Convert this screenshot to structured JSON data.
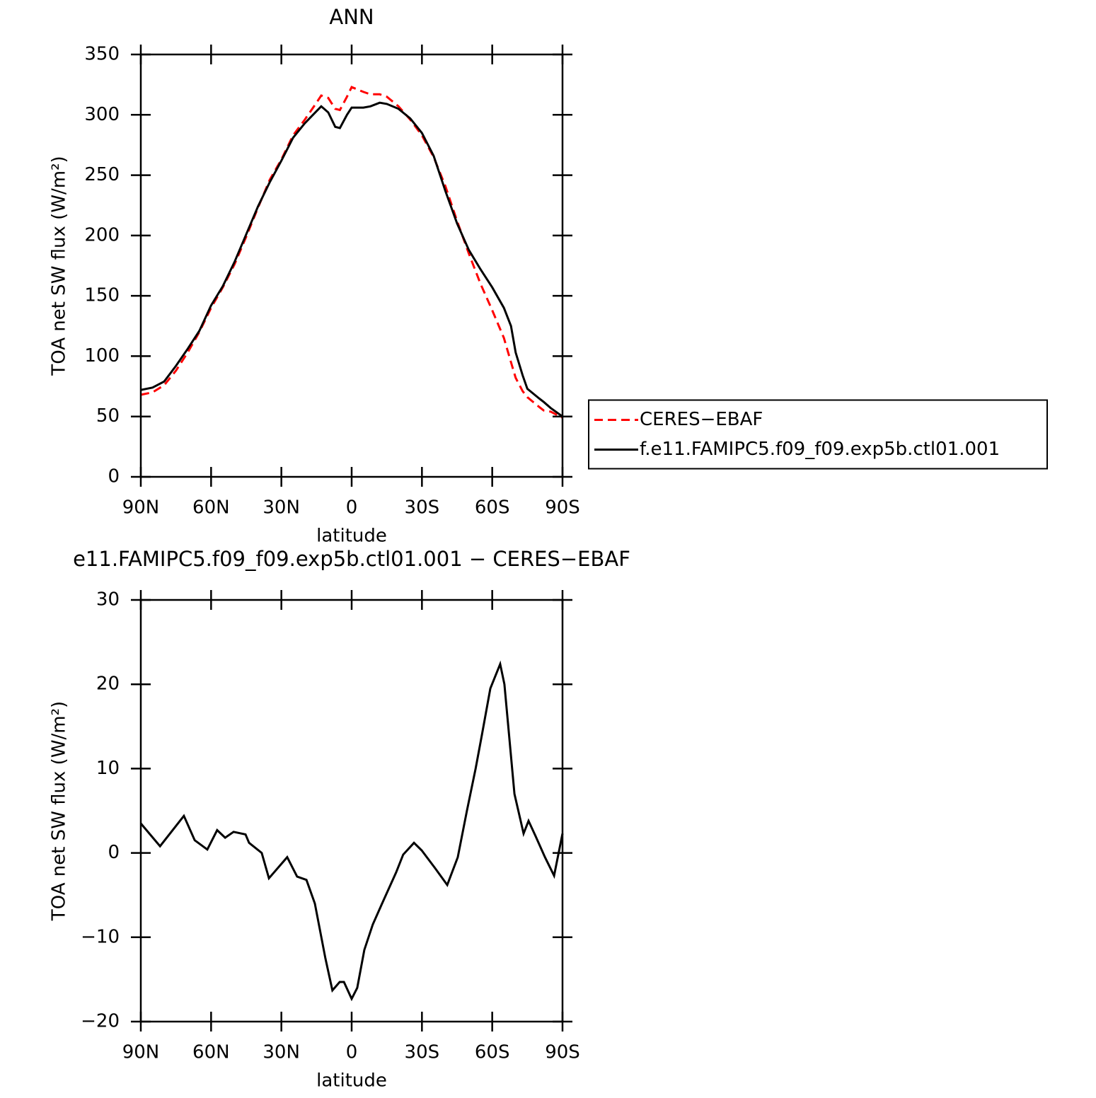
{
  "chart_data": [
    {
      "type": "line",
      "title": "ANN",
      "x_label": "latitude",
      "y_label": "TOA net SW flux (W/m²)",
      "xlim": [
        90,
        -90
      ],
      "xticks": [
        {
          "value": 90,
          "label": "90N"
        },
        {
          "value": 60,
          "label": "60N"
        },
        {
          "value": 30,
          "label": "30N"
        },
        0,
        {
          "value": -30,
          "label": "30S"
        },
        {
          "value": -60,
          "label": "60S"
        },
        {
          "value": -90,
          "label": "90S"
        }
      ],
      "ylim": [
        0,
        350
      ],
      "yticks": [
        0,
        50,
        100,
        150,
        200,
        250,
        300,
        350
      ],
      "legend": "right",
      "series": [
        {
          "name": "CERES−EBAF",
          "color": "#ff0000",
          "dash": true,
          "x": [
            90,
            85,
            80,
            75,
            70,
            65,
            60,
            55,
            50,
            45,
            40,
            35,
            30,
            25,
            20,
            15,
            13,
            10,
            7,
            5,
            2,
            0,
            -5,
            -8,
            -12,
            -15,
            -20,
            -25,
            -30,
            -35,
            -40,
            -45,
            -50,
            -55,
            -60,
            -65,
            -68,
            -70,
            -73,
            -75,
            -80,
            -82,
            -85,
            -90
          ],
          "values": [
            68,
            70,
            76,
            88,
            103,
            120,
            140,
            157,
            176,
            199,
            223,
            246,
            263,
            283,
            296,
            310,
            316,
            314,
            305,
            304,
            315,
            323,
            319,
            317,
            317,
            315,
            307,
            296,
            283,
            265,
            241,
            212,
            185,
            160,
            138,
            115,
            95,
            82,
            71,
            66,
            58,
            55,
            54,
            49
          ]
        },
        {
          "name": "f.e11.FAMIPC5.f09_f09.exp5b.ctl01.001",
          "color": "#000000",
          "dash": false,
          "x": [
            90,
            85,
            80,
            75,
            70,
            65,
            60,
            55,
            50,
            45,
            40,
            35,
            30,
            25,
            20,
            15,
            13,
            10,
            7,
            5,
            2,
            0,
            -5,
            -8,
            -12,
            -15,
            -20,
            -25,
            -30,
            -35,
            -40,
            -45,
            -50,
            -55,
            -60,
            -65,
            -68,
            -70,
            -73,
            -75,
            -80,
            -82,
            -85,
            -90
          ],
          "values": [
            72,
            74,
            79,
            92,
            106,
            121,
            142,
            158,
            178,
            201,
            224,
            244,
            262,
            281,
            293,
            303,
            307,
            302,
            290,
            289,
            300,
            306,
            306,
            307,
            310,
            309,
            305,
            297,
            285,
            266,
            237,
            210,
            188,
            172,
            157,
            140,
            125,
            103,
            84,
            73,
            65,
            62,
            57,
            50
          ]
        }
      ]
    },
    {
      "type": "line",
      "title": "e11.FAMIPC5.f09_f09.exp5b.ctl01.001 − CERES−EBAF",
      "x_label": "latitude",
      "y_label": "TOA net SW flux (W/m²)",
      "xlim": [
        90,
        -90
      ],
      "xticks": [
        {
          "value": 90,
          "label": "90N"
        },
        {
          "value": 60,
          "label": "60N"
        },
        {
          "value": 30,
          "label": "30N"
        },
        0,
        {
          "value": -30,
          "label": "30S"
        },
        {
          "value": -60,
          "label": "60S"
        },
        {
          "value": -90,
          "label": "90S"
        }
      ],
      "ylim": [
        -20,
        30
      ],
      "yticks": [
        {
          "value": -20,
          "label": "−20"
        },
        {
          "value": -10,
          "label": "−10"
        },
        0,
        10,
        20,
        30
      ],
      "series": [
        {
          "color": "#000000",
          "dash": false,
          "x": [
            90,
            81.8,
            71.6,
            67,
            61.6,
            57.4,
            54,
            50.4,
            45.3,
            43.8,
            38.4,
            35.3,
            27.5,
            23.3,
            19.3,
            15.7,
            11.2,
            8.2,
            5.1,
            3.3,
            0,
            -2.4,
            -5.4,
            -9,
            -13,
            -19,
            -22,
            -26.6,
            -29.9,
            -35.6,
            -40.8,
            -45.3,
            -49.2,
            -52.9,
            -55.6,
            -59.2,
            -63.4,
            -65.2,
            -69.5,
            -73.4,
            -75.5,
            -78.5,
            -82.5,
            -86.4,
            -90
          ],
          "values": [
            3.5,
            0.8,
            4.4,
            1.5,
            0.4,
            2.7,
            1.8,
            2.5,
            2.2,
            1.2,
            0,
            -3,
            -0.5,
            -2.8,
            -3.2,
            -6,
            -12.5,
            -16.3,
            -15.3,
            -15.3,
            -17.3,
            -16,
            -11.5,
            -8.5,
            -6,
            -2.3,
            -0.2,
            1.2,
            0.3,
            -1.8,
            -3.8,
            -0.5,
            5,
            10,
            14,
            19.5,
            22.4,
            20,
            7,
            2.3,
            3.8,
            2,
            -0.5,
            -2.7,
            2.3
          ]
        }
      ]
    }
  ]
}
